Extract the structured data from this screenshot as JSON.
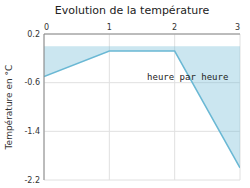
{
  "chart_data": {
    "type": "area",
    "title": "Evolution de la température",
    "ylabel": "Température en °C",
    "x": [
      0,
      1,
      2,
      3
    ],
    "series": [
      {
        "values": [
          -0.5,
          -0.08,
          -0.08,
          -2.0
        ],
        "color": "#6ab8d4"
      }
    ],
    "xlim": [
      0,
      3
    ],
    "ylim": [
      -2.2,
      0.2
    ],
    "xticks": [
      0,
      1,
      2,
      3
    ],
    "yticks": [
      0.2,
      -0.6,
      -1.4,
      -2.2
    ],
    "grid": true,
    "annotations": [
      {
        "text": "heure par heure",
        "x": 2.2,
        "y": -0.45
      }
    ]
  }
}
